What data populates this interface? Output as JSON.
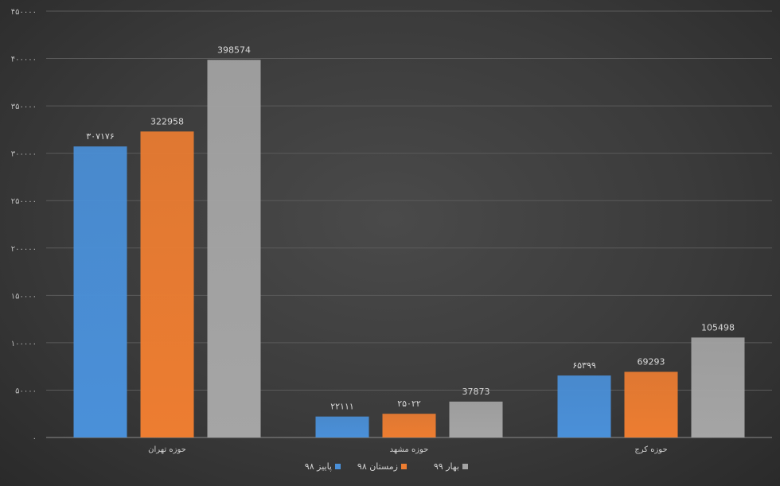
{
  "chart_data": {
    "type": "bar",
    "title": "",
    "xlabel": "",
    "ylabel": "",
    "ylim": [
      0,
      450000
    ],
    "y_ticks": [
      0,
      50000,
      100000,
      150000,
      200000,
      250000,
      300000,
      350000,
      400000,
      450000
    ],
    "y_tick_labels": [
      "۰",
      "۵۰۰۰۰",
      "۱۰۰۰۰۰",
      "۱۵۰۰۰۰",
      "۲۰۰۰۰۰",
      "۲۵۰۰۰۰",
      "۳۰۰۰۰۰",
      "۳۵۰۰۰۰",
      "۴۰۰۰۰۰",
      "۴۵۰۰۰۰"
    ],
    "grid": true,
    "legend_position": "bottom",
    "categories": [
      "حوزه تهران",
      "حوزه مشهد",
      "حوزه کرج"
    ],
    "series": [
      {
        "name": "پاییز ۹۸",
        "color": "#4a90d9",
        "values": [
          307176,
          22111,
          65399
        ],
        "labels": [
          "۳۰۷۱۷۶",
          "۲۲۱۱۱",
          "۶۵۳۹۹"
        ]
      },
      {
        "name": "زمستان ۹۸",
        "color": "#ed7d31",
        "values": [
          322958,
          25022,
          69293
        ],
        "labels": [
          "322958",
          "۲۵۰۲۲",
          "69293"
        ]
      },
      {
        "name": "بهار ۹۹",
        "color": "#a5a5a5",
        "values": [
          398574,
          37873,
          105498
        ],
        "labels": [
          "398574",
          "37873",
          "105498"
        ]
      }
    ]
  }
}
